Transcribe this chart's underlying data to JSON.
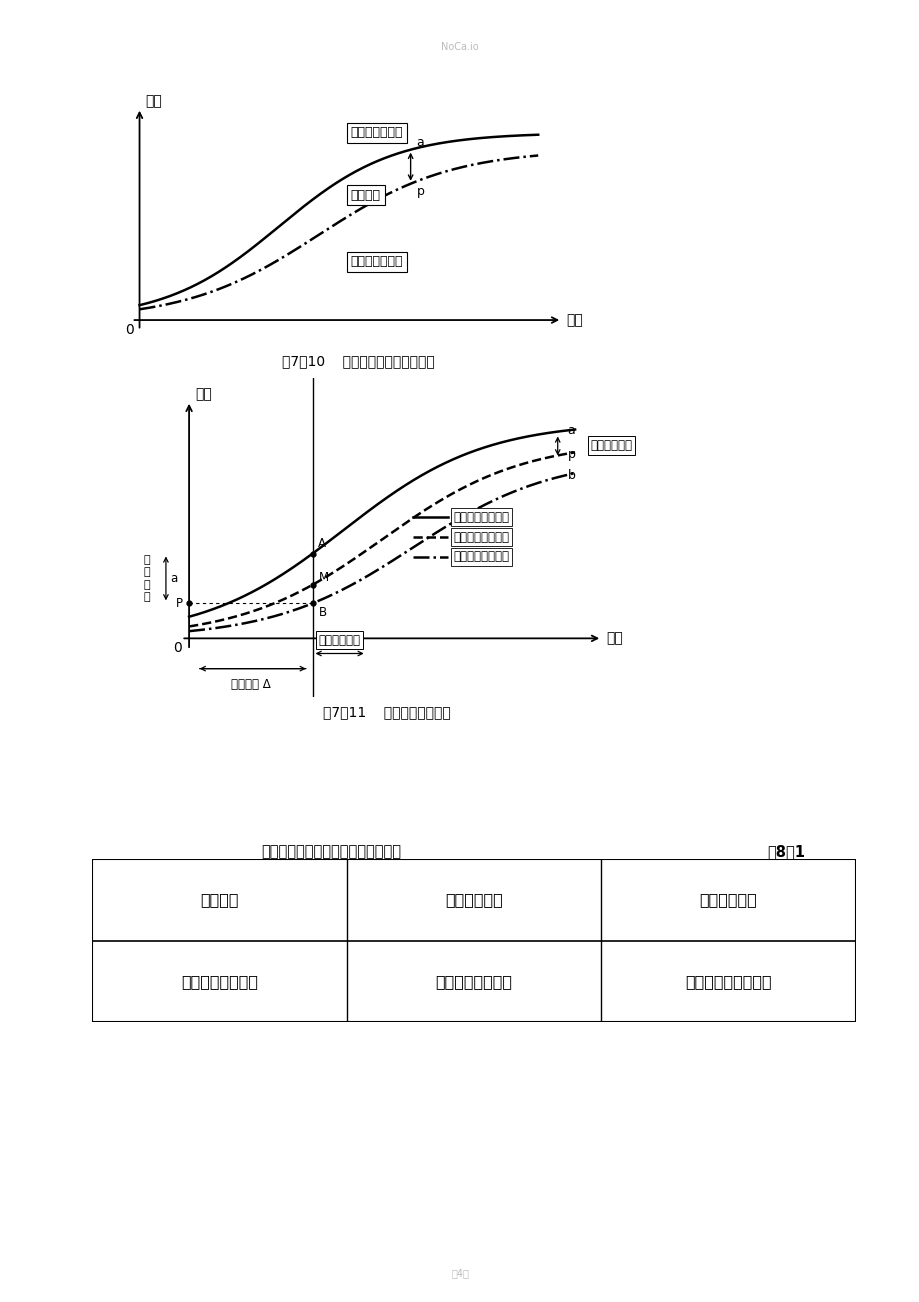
{
  "bg_color": "#ffffff",
  "page_watermark": "NoCa.io",
  "page_footer": "笥4页",
  "fig1": {
    "title": "图7－10    投资计划值与实际值曲线",
    "ylabel": "投资",
    "xlabel": "时间",
    "label_actual": "投资实际值曲线",
    "label_plan": "投资计划值曲线",
    "label_diff": "投资偏差",
    "point_a": "a",
    "point_p": "p"
  },
  "fig2": {
    "title": "图7－11    三条投资参数曲线",
    "ylabel": "投资",
    "xlabel": "时间",
    "label_a": "a",
    "label_p": "p",
    "label_b": "b",
    "label_A_pt": "A",
    "label_M_pt": "M",
    "label_B_pt": "B",
    "label_P_pt": "P",
    "label_invest_increase_lines": [
      "投",
      "资",
      "增",
      "加"
    ],
    "label_a_small": "a",
    "annotation_invest_total": "投资增加总额",
    "annotation_period_delay": "工期拖延总数",
    "annotation_project_delay": "工程拖延 Δ",
    "legend_line1": "已完工程实际投资",
    "legend_line2": "拟完工程计划投资",
    "legend_line3": "已完工程计划投资"
  },
  "table": {
    "title": "工程竣工结算和工程竣工决算的区别",
    "table_num": "表8－1",
    "headers": [
      "区别项目",
      "工程竣工结算",
      "工程竣工决算"
    ],
    "row1": [
      "编制单位及其部门",
      "承包方的预算部门",
      "项目业主的财务部门"
    ]
  }
}
